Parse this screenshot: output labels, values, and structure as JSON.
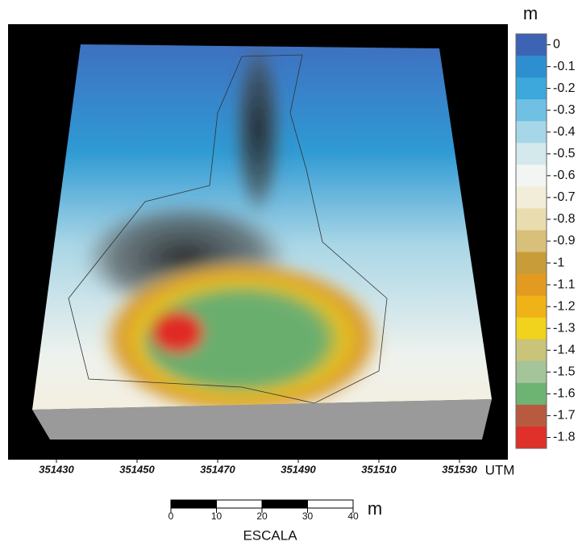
{
  "colorbar": {
    "unit": "m",
    "ticks": [
      0,
      -0.1,
      -0.2,
      -0.3,
      -0.4,
      -0.5,
      -0.6,
      -0.7,
      -0.8,
      -0.9,
      -1,
      -1.1,
      -1.2,
      -1.3,
      -1.4,
      -1.5,
      -1.6,
      -1.7,
      -1.8
    ],
    "colors": [
      "#3d63b5",
      "#2e8fd0",
      "#3ca8dc",
      "#6fc0e3",
      "#a6d7e8",
      "#d3e9ec",
      "#f3f5f2",
      "#f2edd9",
      "#e9dcae",
      "#d9c07a",
      "#c99c3a",
      "#e39a20",
      "#efb318",
      "#f1d21c",
      "#c9c47a",
      "#a4c49a",
      "#6db473",
      "#b85a40",
      "#e0302a"
    ]
  },
  "x_axis": {
    "label": "UTM",
    "ticks": [
      351430,
      351450,
      351470,
      351490,
      351510,
      351530
    ],
    "xlim": [
      351420,
      351540
    ]
  },
  "scale_bar": {
    "ticks": [
      0,
      10,
      20,
      30,
      40
    ],
    "unit": "m",
    "label": "ESCALA"
  }
}
